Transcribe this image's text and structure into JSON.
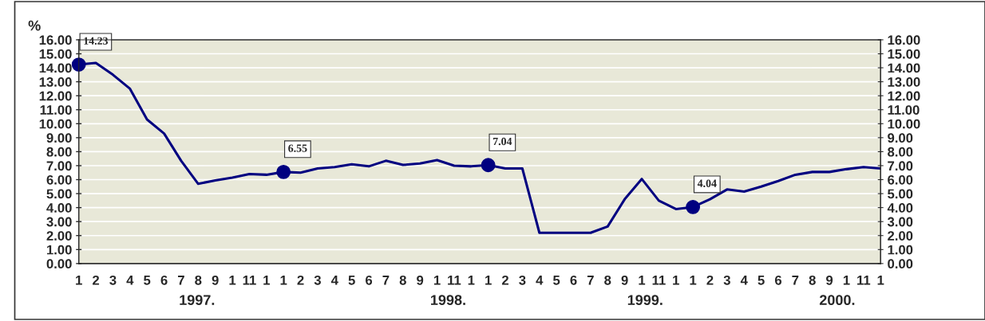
{
  "chart_data": {
    "type": "line",
    "ylabel": "%",
    "categories": [
      "1",
      "2",
      "3",
      "4",
      "5",
      "6",
      "7",
      "8",
      "9",
      "1",
      "11",
      "1",
      "1",
      "2",
      "3",
      "4",
      "5",
      "6",
      "7",
      "8",
      "9",
      "1",
      "11",
      "1",
      "1",
      "2",
      "3",
      "4",
      "5",
      "6",
      "7",
      "8",
      "9",
      "1",
      "11",
      "1",
      "1",
      "2",
      "3",
      "4",
      "5",
      "6",
      "7",
      "8",
      "9",
      "1",
      "11",
      "1"
    ],
    "series": [
      {
        "color": "#000080",
        "values": [
          14.23,
          14.35,
          13.5,
          12.5,
          10.3,
          9.3,
          7.35,
          5.7,
          5.95,
          6.15,
          6.4,
          6.35,
          6.55,
          6.5,
          6.8,
          6.9,
          7.1,
          6.95,
          7.35,
          7.05,
          7.15,
          7.4,
          7.0,
          6.95,
          7.04,
          6.8,
          6.8,
          2.2,
          2.2,
          2.2,
          2.2,
          2.65,
          4.6,
          6.05,
          4.5,
          3.9,
          4.04,
          4.6,
          5.3,
          5.15,
          5.5,
          5.9,
          6.35,
          6.55,
          6.55,
          6.75,
          6.9,
          6.8
        ],
        "value_labels": [
          "14.23",
          null,
          null,
          null,
          null,
          null,
          null,
          null,
          null,
          null,
          null,
          null,
          "6.55",
          null,
          null,
          null,
          null,
          null,
          null,
          null,
          null,
          null,
          null,
          null,
          "7.04",
          null,
          null,
          null,
          null,
          null,
          null,
          null,
          null,
          null,
          null,
          null,
          "4.04",
          null,
          null,
          null,
          null,
          null,
          null,
          null,
          null,
          null,
          null,
          null
        ]
      }
    ],
    "ylim": [
      0,
      16
    ],
    "yticks": [
      {
        "value": 0,
        "label": "0.00"
      },
      {
        "value": 1,
        "label": "1.00"
      },
      {
        "value": 2,
        "label": "2.00"
      },
      {
        "value": 3,
        "label": "3.00"
      },
      {
        "value": 4,
        "label": "4.00"
      },
      {
        "value": 5,
        "label": "5.00"
      },
      {
        "value": 6,
        "label": "6.00"
      },
      {
        "value": 7,
        "label": "7.00"
      },
      {
        "value": 8,
        "label": "8.00"
      },
      {
        "value": 9,
        "label": "9.00"
      },
      {
        "value": 10,
        "label": "10.00"
      },
      {
        "value": 11,
        "label": "11.00"
      },
      {
        "value": 12,
        "label": "12.00"
      },
      {
        "value": 13,
        "label": "13.00"
      },
      {
        "value": 14,
        "label": "14.00"
      },
      {
        "value": 15,
        "label": "15.00"
      },
      {
        "value": 16,
        "label": "16.00"
      }
    ],
    "y2lim": [
      0,
      16
    ],
    "y2ticks": [
      {
        "value": 0,
        "label": "0.00"
      },
      {
        "value": 1,
        "label": "1.00"
      },
      {
        "value": 2,
        "label": "2.00"
      },
      {
        "value": 3,
        "label": "3.00"
      },
      {
        "value": 4,
        "label": "4.00"
      },
      {
        "value": 5,
        "label": "5.00"
      },
      {
        "value": 6,
        "label": "6.00"
      },
      {
        "value": 7,
        "label": "7.00"
      },
      {
        "value": 8,
        "label": "8.00"
      },
      {
        "value": 9,
        "label": "9.00"
      },
      {
        "value": 10,
        "label": "10.00"
      },
      {
        "value": 11,
        "label": "11.00"
      },
      {
        "value": 12,
        "label": "12.00"
      },
      {
        "value": 13,
        "label": "13.00"
      },
      {
        "value": 14,
        "label": "14.00"
      },
      {
        "value": 15,
        "label": "15.00"
      },
      {
        "value": 16,
        "label": "16.00"
      }
    ],
    "annotations": [
      "1997.",
      "1998.",
      "1999.",
      "2000."
    ],
    "grid": "y",
    "line_style": "solid",
    "legend": false
  }
}
